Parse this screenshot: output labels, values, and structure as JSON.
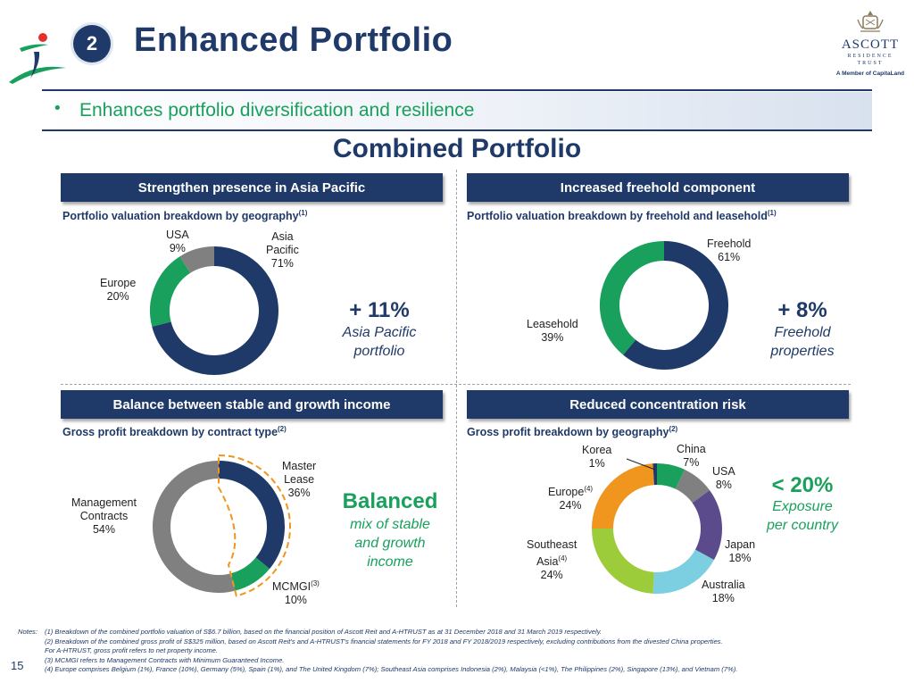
{
  "slide": {
    "section_number": "2",
    "title": "Enhanced Portfolio",
    "bullet": "Enhances portfolio diversification and resilience",
    "combined_title": "Combined Portfolio",
    "page_number": "15"
  },
  "brand": {
    "name": "ASCOTT",
    "sub1": "RESIDENCE",
    "sub2": "TRUST",
    "member": "A Member of CapitaLand"
  },
  "colors": {
    "navy": "#1f3a68",
    "green": "#19a05c",
    "gray": "#808080",
    "purple": "#5b4a8c",
    "lightblue": "#7ccfe0",
    "lime": "#9ccc3a",
    "orange": "#f0961e"
  },
  "quadrants": {
    "q1": {
      "header": "Strengthen presence in Asia Pacific",
      "subtitle": "Portfolio valuation breakdown by geography",
      "subtitle_note": "(1)",
      "kpi": "+ 11%",
      "kpi_desc_1": "Asia Pacific",
      "kpi_desc_2": "portfolio"
    },
    "q2": {
      "header": "Increased freehold component",
      "subtitle": "Portfolio valuation breakdown by freehold and leasehold",
      "subtitle_note": "(1)",
      "kpi": "+ 8%",
      "kpi_desc_1": "Freehold",
      "kpi_desc_2": "properties"
    },
    "q3": {
      "header": "Balance between stable and growth income",
      "subtitle": "Gross profit breakdown by contract type",
      "subtitle_note": "(2)",
      "kpi": "Balanced",
      "kpi_desc_1": "mix of stable",
      "kpi_desc_2": "and growth",
      "kpi_desc_3": "income"
    },
    "q4": {
      "header": "Reduced concentration risk",
      "subtitle": "Gross profit breakdown by geography",
      "subtitle_note": "(2)",
      "kpi": "< 20%",
      "kpi_desc_1": "Exposure",
      "kpi_desc_2": "per country"
    }
  },
  "chart_data": [
    {
      "type": "pie",
      "categories": [
        "Asia Pacific",
        "Europe",
        "USA"
      ],
      "values": [
        71,
        20,
        9
      ],
      "labels": [
        {
          "lines": [
            "Asia",
            "Pacific",
            "71%"
          ]
        },
        {
          "lines": [
            "Europe",
            "20%"
          ]
        },
        {
          "lines": [
            "USA",
            "9%"
          ]
        }
      ],
      "colors": [
        "#1f3a68",
        "#19a05c",
        "#808080"
      ]
    },
    {
      "type": "pie",
      "categories": [
        "Freehold",
        "Leasehold"
      ],
      "values": [
        61,
        39
      ],
      "labels": [
        {
          "lines": [
            "Freehold",
            "61%"
          ]
        },
        {
          "lines": [
            "Leasehold",
            "39%"
          ]
        }
      ],
      "colors": [
        "#1f3a68",
        "#19a05c"
      ]
    },
    {
      "type": "pie",
      "categories": [
        "Master Lease",
        "MCMGI",
        "Management Contracts"
      ],
      "values": [
        36,
        10,
        54
      ],
      "labels": [
        {
          "lines": [
            "Master",
            "Lease",
            "36%"
          ]
        },
        {
          "lines": [
            "MCMGI",
            "10%"
          ],
          "note": "(3)"
        },
        {
          "lines": [
            "Management",
            "Contracts",
            "54%"
          ]
        }
      ],
      "colors": [
        "#1f3a68",
        "#19a05c",
        "#808080"
      ]
    },
    {
      "type": "pie",
      "categories": [
        "China",
        "USA",
        "Japan",
        "Australia",
        "Southeast Asia",
        "Europe",
        "Korea"
      ],
      "values": [
        7,
        8,
        18,
        18,
        24,
        24,
        1
      ],
      "labels": [
        {
          "lines": [
            "China",
            "7%"
          ]
        },
        {
          "lines": [
            "USA",
            "8%"
          ]
        },
        {
          "lines": [
            "Japan",
            "18%"
          ]
        },
        {
          "lines": [
            "Australia",
            "18%"
          ]
        },
        {
          "lines": [
            "Southeast",
            "Asia",
            "24%"
          ],
          "note": "(4)"
        },
        {
          "lines": [
            "Europe",
            "24%"
          ],
          "note": "(4)"
        },
        {
          "lines": [
            "Korea",
            "1%"
          ]
        }
      ],
      "colors": [
        "#19a05c",
        "#808080",
        "#5b4a8c",
        "#7ccfe0",
        "#9ccc3a",
        "#f0961e",
        "#1f3a68"
      ]
    }
  ],
  "notes": {
    "label": "Notes:",
    "items": [
      {
        "key": "(1)",
        "text": "Breakdown of the combined portfolio valuation of S$6.7 billion, based on the financial position of Ascott Reit and A-HTRUST as at 31 December 2018 and 31 March 2019 respectively."
      },
      {
        "key": "(2)",
        "text": "Breakdown of the combined gross profit of S$325 million, based on Ascott Reit's and A-HTRUST's financial statements for FY 2018 and FY 2018/2019 respectively, excluding contributions from the divested China properties."
      },
      {
        "key": "",
        "text": "For A-HTRUST, gross profit refers to net property income."
      },
      {
        "key": "(3)",
        "text": "MCMGI refers to Management Contracts with Minimum Guaranteed Income."
      },
      {
        "key": "(4)",
        "text": "Europe comprises Belgium (1%), France (10%), Germany (5%), Spain (1%), and The United Kingdom (7%); Southeast Asia comprises Indonesia (2%), Malaysia (<1%), The Philippines (2%), Singapore (13%), and Vietnam (7%)."
      }
    ]
  }
}
